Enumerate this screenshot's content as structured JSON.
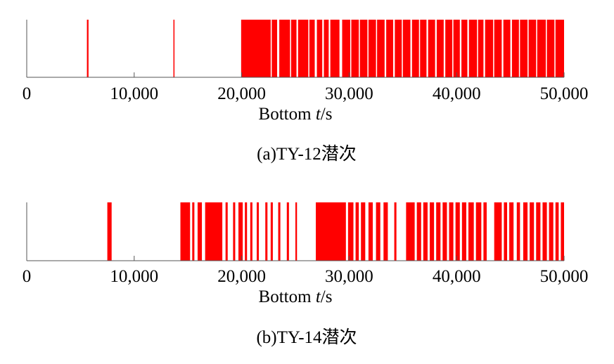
{
  "colors": {
    "bar": "#ff0000",
    "axis": "#555555"
  },
  "chart_data": [
    {
      "type": "bar",
      "caption": "(a)TY-12潜次",
      "xlabel_prefix": "Bottom ",
      "xlabel_var": "t",
      "xlabel_suffix": "/s",
      "xlim": [
        0,
        50000
      ],
      "xticks": [
        0,
        10000,
        20000,
        30000,
        40000,
        50000
      ],
      "xtick_labels": [
        "0",
        "10,000",
        "20,000",
        "30,000",
        "40,000",
        "50,000"
      ],
      "bars": [
        [
          5600,
          5750
        ],
        [
          13650,
          13750
        ],
        [
          19950,
          22700
        ],
        [
          22800,
          23300
        ],
        [
          23500,
          24500
        ],
        [
          24600,
          25100
        ],
        [
          25250,
          26200
        ],
        [
          26300,
          26800
        ],
        [
          27000,
          27500
        ],
        [
          27650,
          28100
        ],
        [
          28250,
          29100
        ],
        [
          29350,
          30100
        ],
        [
          30200,
          30900
        ],
        [
          31000,
          31700
        ],
        [
          31800,
          32500
        ],
        [
          32600,
          33300
        ],
        [
          33450,
          34100
        ],
        [
          34250,
          34900
        ],
        [
          35000,
          35700
        ],
        [
          35850,
          36500
        ],
        [
          36600,
          37200
        ],
        [
          37350,
          38000
        ],
        [
          38150,
          38800
        ],
        [
          38950,
          39600
        ],
        [
          39700,
          40300
        ],
        [
          40450,
          41000
        ],
        [
          41150,
          41900
        ],
        [
          42000,
          42500
        ],
        [
          42650,
          43400
        ],
        [
          43500,
          44200
        ],
        [
          44350,
          45000
        ],
        [
          45150,
          45800
        ],
        [
          45900,
          46600
        ],
        [
          46700,
          47400
        ],
        [
          47500,
          48300
        ],
        [
          48400,
          49100
        ],
        [
          49200,
          50000
        ]
      ]
    },
    {
      "type": "bar",
      "caption": "(b)TY-14潜次",
      "xlabel_prefix": "Bottom ",
      "xlabel_var": "t",
      "xlabel_suffix": "/s",
      "xlim": [
        0,
        50000
      ],
      "xticks": [
        0,
        10000,
        20000,
        30000,
        40000,
        50000
      ],
      "xtick_labels": [
        "0",
        "10,000",
        "20,000",
        "30,000",
        "40,000",
        "50,000"
      ],
      "bars": [
        [
          7500,
          7900
        ],
        [
          14300,
          15200
        ],
        [
          15400,
          15600
        ],
        [
          15900,
          16300
        ],
        [
          16600,
          18200
        ],
        [
          18500,
          18700
        ],
        [
          19200,
          19400
        ],
        [
          19700,
          20100
        ],
        [
          20300,
          20500
        ],
        [
          20800,
          21000
        ],
        [
          21400,
          21600
        ],
        [
          22200,
          22400
        ],
        [
          22700,
          22900
        ],
        [
          23400,
          23600
        ],
        [
          24200,
          24400
        ],
        [
          25000,
          25150
        ],
        [
          26900,
          29700
        ],
        [
          29900,
          30400
        ],
        [
          30600,
          30900
        ],
        [
          31100,
          31500
        ],
        [
          31800,
          32200
        ],
        [
          32500,
          32900
        ],
        [
          33200,
          33600
        ],
        [
          34200,
          34400
        ],
        [
          35300,
          36100
        ],
        [
          36300,
          36700
        ],
        [
          36900,
          37300
        ],
        [
          37500,
          37900
        ],
        [
          38100,
          38500
        ],
        [
          38700,
          39100
        ],
        [
          39300,
          39700
        ],
        [
          39900,
          40300
        ],
        [
          40500,
          40900
        ],
        [
          41100,
          41600
        ],
        [
          41800,
          42300
        ],
        [
          42500,
          42800
        ],
        [
          43500,
          44200
        ],
        [
          44400,
          44700
        ],
        [
          44900,
          45300
        ],
        [
          45600,
          45900
        ],
        [
          46200,
          46600
        ],
        [
          46800,
          47200
        ],
        [
          47400,
          47800
        ],
        [
          48000,
          48400
        ],
        [
          48600,
          49000
        ],
        [
          49200,
          49500
        ],
        [
          49700,
          50000
        ]
      ]
    }
  ]
}
